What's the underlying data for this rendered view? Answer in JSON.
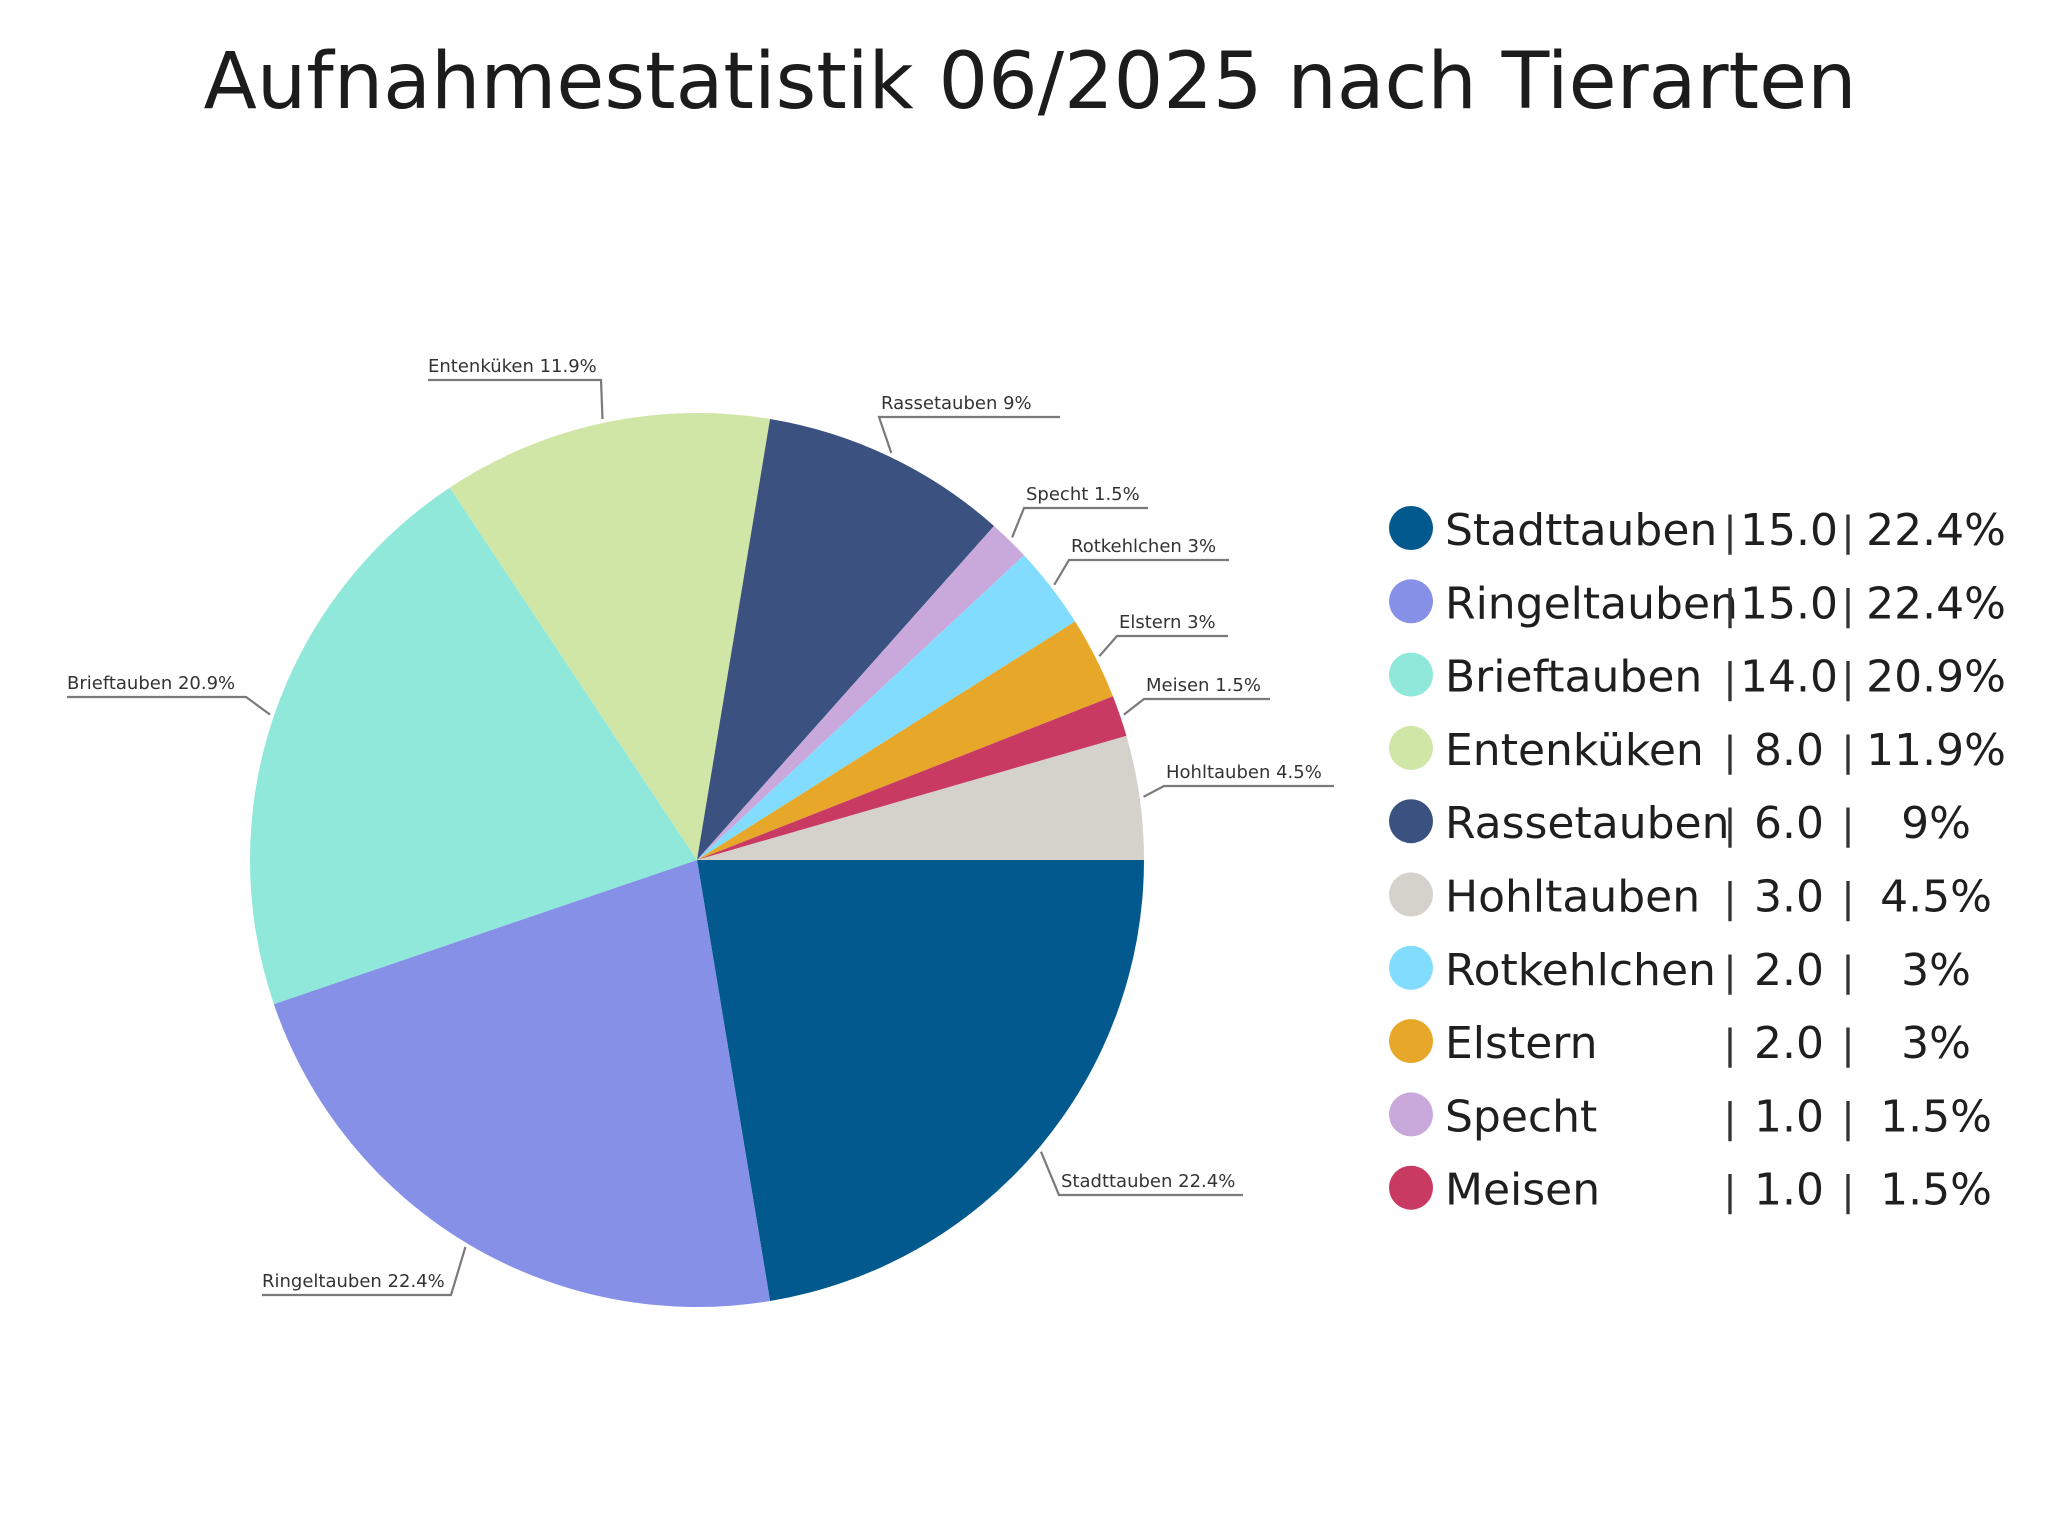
{
  "chart_data": {
    "type": "pie",
    "title": "Aufnahmestatistik 06/2025 nach Tierarten",
    "slices": [
      {
        "label": "Stadttauben",
        "value": 15.0,
        "value_text": "15.0",
        "percent_text": "22.4%",
        "color": "#02598e"
      },
      {
        "label": "Ringeltauben",
        "value": 15.0,
        "value_text": "15.0",
        "percent_text": "22.4%",
        "color": "#8690e7"
      },
      {
        "label": "Brieftauben",
        "value": 14.0,
        "value_text": "14.0",
        "percent_text": "20.9%",
        "color": "#8fe8da"
      },
      {
        "label": "Entenküken",
        "value": 8.0,
        "value_text": "8.0",
        "percent_text": "11.9%",
        "color": "#d0e6a7"
      },
      {
        "label": "Rassetauben",
        "value": 6.0,
        "value_text": "6.0",
        "percent_text": "9%",
        "color": "#3b5180"
      },
      {
        "label": "Specht",
        "value": 1.0,
        "value_text": "1.0",
        "percent_text": "1.5%",
        "color": "#c9a8db"
      },
      {
        "label": "Rotkehlchen",
        "value": 2.0,
        "value_text": "2.0",
        "percent_text": "3%",
        "color": "#82dcfe"
      },
      {
        "label": "Elstern",
        "value": 2.0,
        "value_text": "2.0",
        "percent_text": "3%",
        "color": "#e7a728"
      },
      {
        "label": "Meisen",
        "value": 1.0,
        "value_text": "1.0",
        "percent_text": "1.5%",
        "color": "#c93a63"
      },
      {
        "label": "Hohltauben",
        "value": 3.0,
        "value_text": "3.0",
        "percent_text": "4.5%",
        "color": "#d5d1cb"
      }
    ],
    "slice_labels": [
      "Stadttauben 22.4%",
      "Ringeltauben 22.4%",
      "Brieftauben 20.9%",
      "Entenküken 11.9%",
      "Rassetauben 9%",
      "Specht 1.5%",
      "Rotkehlchen 3%",
      "Elstern 3%",
      "Meisen 1.5%",
      "Hohltauben 4.5%"
    ],
    "legend": {
      "position": "right",
      "order": [
        "Stadttauben",
        "Ringeltauben",
        "Brieftauben",
        "Entenküken",
        "Rassetauben",
        "Hohltauben",
        "Rotkehlchen",
        "Elstern",
        "Specht",
        "Meisen"
      ]
    }
  }
}
